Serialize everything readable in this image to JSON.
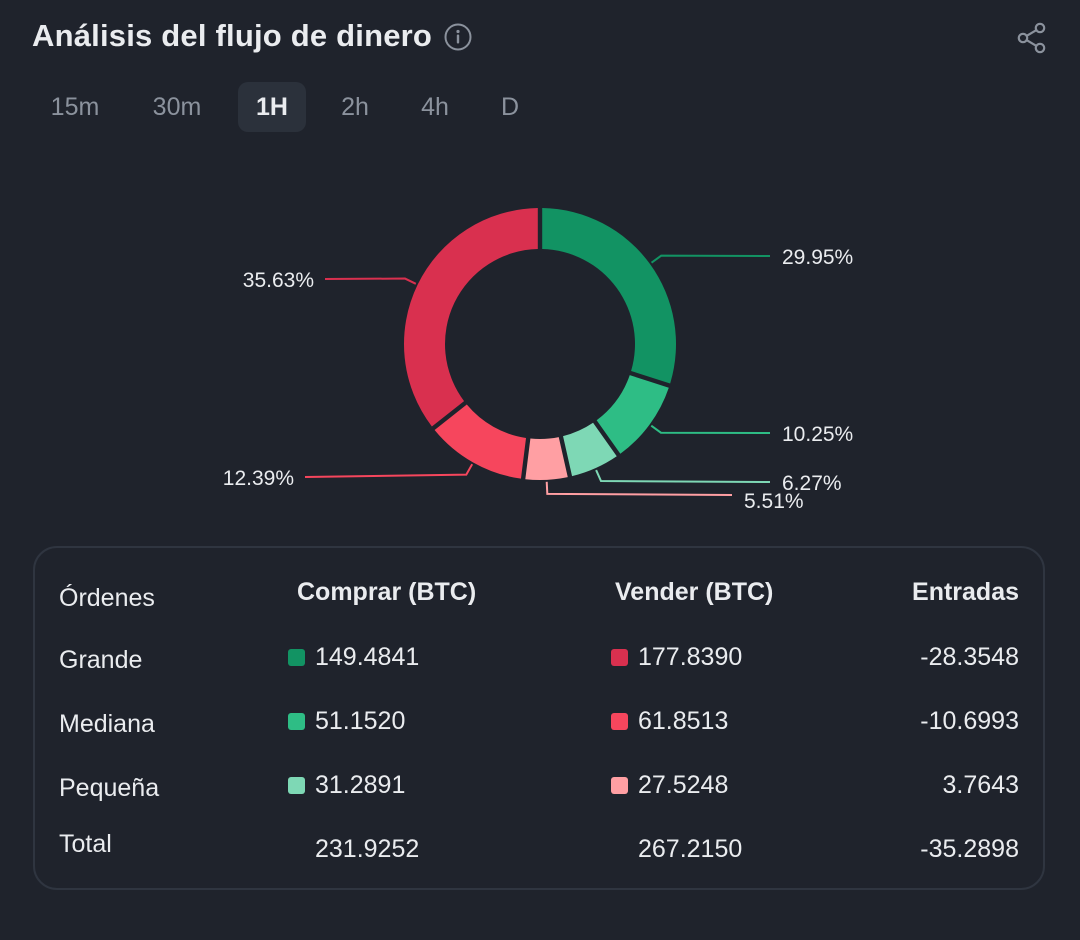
{
  "header": {
    "title": "Análisis del flujo de dinero",
    "info_icon": "info-icon",
    "share_icon": "share-icon"
  },
  "tabs": [
    {
      "label": "15m",
      "active": false
    },
    {
      "label": "30m",
      "active": false
    },
    {
      "label": "1H",
      "active": true
    },
    {
      "label": "2h",
      "active": false
    },
    {
      "label": "4h",
      "active": false
    },
    {
      "label": "D",
      "active": false
    }
  ],
  "chart_data": {
    "type": "pie",
    "donut": true,
    "slices": [
      {
        "label": "29.95%",
        "value": 29.95,
        "color": "#129363"
      },
      {
        "label": "10.25%",
        "value": 10.25,
        "color": "#2ebd85"
      },
      {
        "label": "6.27%",
        "value": 6.27,
        "color": "#7ed8b5"
      },
      {
        "label": "5.51%",
        "value": 5.51,
        "color": "#ff9fa3"
      },
      {
        "label": "12.39%",
        "value": 12.39,
        "color": "#f6465d"
      },
      {
        "label": "35.63%",
        "value": 35.63,
        "color": "#d9304f"
      }
    ]
  },
  "table": {
    "headers": {
      "orders": "Órdenes",
      "buy": "Comprar (BTC)",
      "sell": "Vender (BTC)",
      "inflow": "Entradas"
    },
    "rows": [
      {
        "label": "Grande",
        "buy": "149.4841",
        "sell": "177.8390",
        "inflow": "-28.3548",
        "buy_color": "#129363",
        "sell_color": "#d9304f"
      },
      {
        "label": "Mediana",
        "buy": "51.1520",
        "sell": "61.8513",
        "inflow": "-10.6993",
        "buy_color": "#2ebd85",
        "sell_color": "#f6465d"
      },
      {
        "label": "Pequeña",
        "buy": "31.2891",
        "sell": "27.5248",
        "inflow": "3.7643",
        "buy_color": "#7ed8b5",
        "sell_color": "#ff9fa3"
      }
    ],
    "total": {
      "label": "Total",
      "buy": "231.9252",
      "sell": "267.2150",
      "inflow": "-35.2898"
    }
  }
}
